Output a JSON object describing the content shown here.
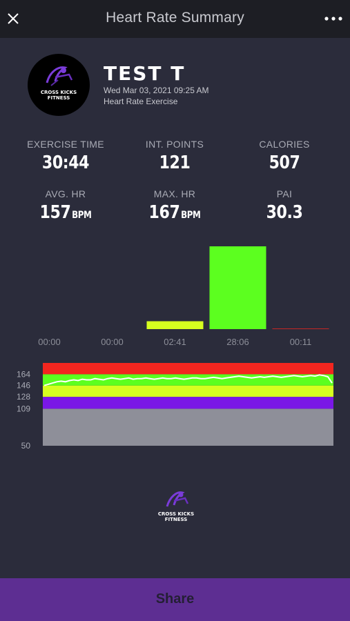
{
  "header": {
    "title": "Heart Rate Summary",
    "close_icon": "close-icon",
    "more_icon": "more-dots-icon"
  },
  "profile": {
    "logo_text_line1": "CROSS KICKS",
    "logo_text_line2": "FITNESS",
    "name": "TEST T",
    "datetime": "Wed Mar 03, 2021 09:25 AM",
    "activity": "Heart Rate Exercise"
  },
  "stats": {
    "exercise_time": {
      "label": "EXERCISE TIME",
      "value": "30:44"
    },
    "int_points": {
      "label": "INT. POINTS",
      "value": "121"
    },
    "calories": {
      "label": "CALORIES",
      "value": "507"
    },
    "avg_hr": {
      "label": "AVG. HR",
      "value": "157",
      "unit": "BPM"
    },
    "max_hr": {
      "label": "MAX. HR",
      "value": "167",
      "unit": "BPM"
    },
    "pai": {
      "label": "PAI",
      "value": "30.3"
    }
  },
  "chart_data": [
    {
      "type": "bar",
      "categories": [
        "00:00",
        "00:00",
        "02:41",
        "28:06",
        "00:11"
      ],
      "values": [
        0,
        0,
        161,
        1686,
        11
      ],
      "colors": [
        "#8e8f99",
        "#7a2ef0",
        "#d6ff1f",
        "#5cff1f",
        "#f2261f"
      ]
    },
    {
      "type": "area",
      "y_ticks": [
        164,
        146,
        128,
        109,
        50
      ],
      "zones": [
        {
          "from": 50,
          "to": 109,
          "color": "#8e8f99"
        },
        {
          "from": 109,
          "to": 128,
          "color": "#7a17e6"
        },
        {
          "from": 128,
          "to": 146,
          "color": "#d6ff1f"
        },
        {
          "from": 146,
          "to": 164,
          "color": "#5cff1f"
        },
        {
          "from": 164,
          "to": 182,
          "color": "#f2261f"
        }
      ],
      "ylim": [
        50,
        182
      ],
      "series": [
        {
          "color": "#ffffff",
          "values": [
            146,
            148,
            150,
            152,
            153,
            152,
            154,
            155,
            154,
            156,
            155,
            155,
            157,
            156,
            155,
            157,
            158,
            157,
            156,
            157,
            158,
            156,
            157,
            157,
            158,
            157,
            156,
            157,
            158,
            157,
            157,
            158,
            157,
            156,
            157,
            158,
            158,
            157,
            157,
            158,
            159,
            158,
            157,
            158,
            159,
            160,
            161,
            160,
            159,
            158,
            159,
            160,
            159,
            160,
            161,
            160,
            159,
            160,
            161,
            162,
            161,
            160,
            161,
            162,
            161,
            163,
            162,
            160,
            150
          ]
        }
      ]
    }
  ],
  "footer": {
    "logo_text_line1": "CROSS KICKS",
    "logo_text_line2": "FITNESS"
  },
  "share": {
    "label": "Share"
  }
}
